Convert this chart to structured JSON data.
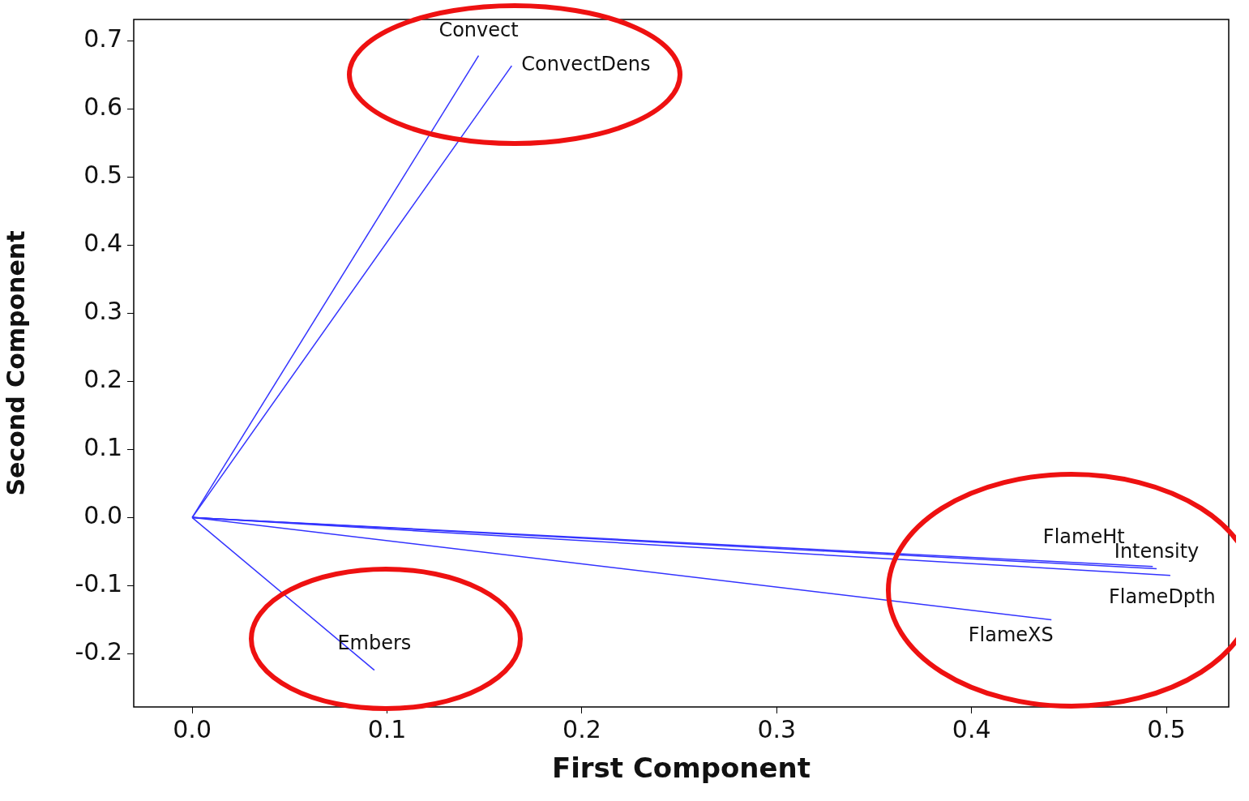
{
  "chart_data": {
    "type": "line",
    "xlabel": "First Component",
    "ylabel": "Second Component",
    "xlim": [
      -0.03,
      0.532
    ],
    "ylim": [
      -0.278,
      0.731
    ],
    "xticks": [
      {
        "value": 0,
        "label": "0.0"
      },
      0.1,
      0.2,
      0.3,
      0.4,
      0.5
    ],
    "yticks": [
      -0.2,
      -0.1,
      {
        "value": 0,
        "label": "0.0"
      },
      0.1,
      0.2,
      0.3,
      0.4,
      0.5,
      0.6,
      0.7
    ],
    "grid": false,
    "legend": false,
    "marker": "none",
    "line_style": "solid",
    "series": [
      {
        "name": "Convect",
        "color": "#3333ff",
        "x": [
          0,
          0.147
        ],
        "values": [
          0,
          0.678
        ]
      },
      {
        "name": "ConvectDens",
        "color": "#3333ff",
        "x": [
          0,
          0.164
        ],
        "values": [
          0,
          0.663
        ]
      },
      {
        "name": "FlameHt",
        "color": "#3333ff",
        "x": [
          0,
          0.493
        ],
        "values": [
          0,
          -0.072
        ]
      },
      {
        "name": "Intensity",
        "color": "#3333ff",
        "x": [
          0,
          0.495
        ],
        "values": [
          0,
          -0.075
        ]
      },
      {
        "name": "FlameDpth",
        "color": "#3333ff",
        "x": [
          0,
          0.502
        ],
        "values": [
          0,
          -0.085
        ]
      },
      {
        "name": "FlameXS",
        "color": "#3333ff",
        "x": [
          0,
          0.441
        ],
        "values": [
          0,
          -0.15
        ]
      },
      {
        "name": "Embers",
        "color": "#3333ff",
        "x": [
          0,
          0.0935
        ],
        "values": [
          0,
          -0.224
        ]
      }
    ]
  }
}
